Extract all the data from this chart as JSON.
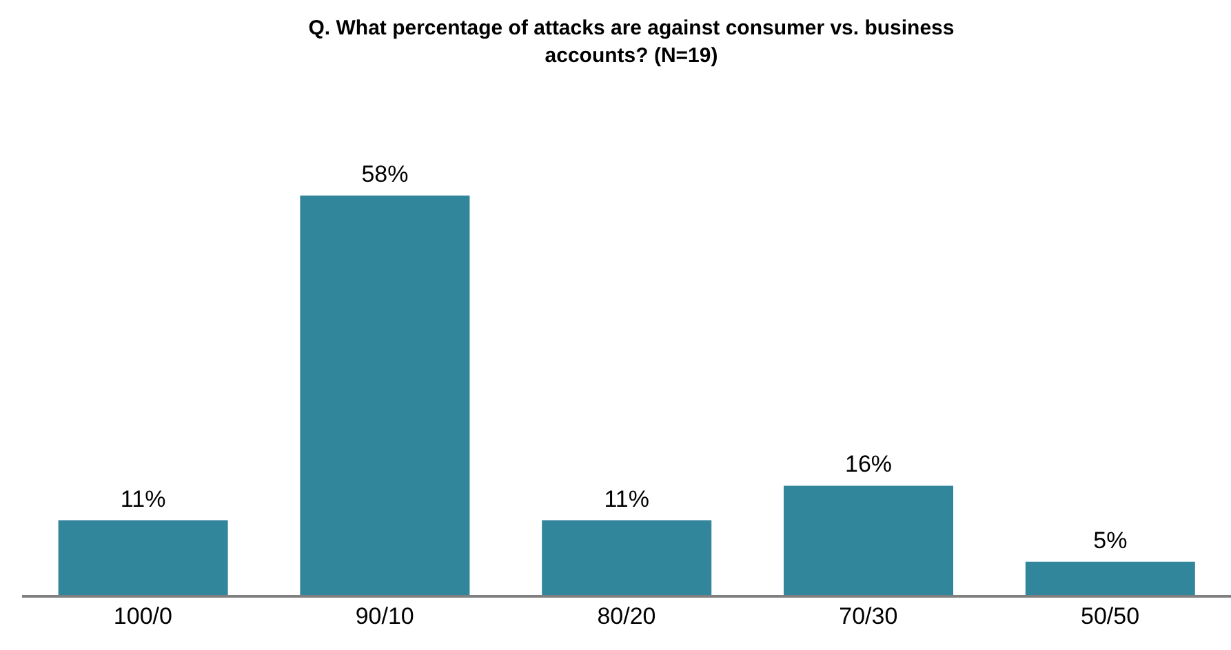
{
  "chart_data": {
    "type": "bar",
    "title": "Q. What percentage of attacks are against consumer vs. business accounts? (N=19)",
    "categories": [
      "100/0",
      "90/10",
      "80/20",
      "70/30",
      "50/50"
    ],
    "values": [
      11,
      58,
      11,
      16,
      5
    ],
    "color": "#31869b",
    "value_labels": [
      "11%",
      "58%",
      "11%",
      "16%",
      "5%"
    ],
    "tick_labels": "x",
    "grid": false,
    "legend": false
  }
}
